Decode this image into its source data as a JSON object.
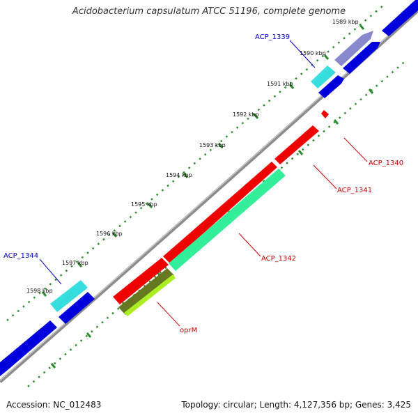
{
  "title": "Acidobacterium capsulatum ATCC 51196, complete genome",
  "accession_text": "Accession: NC_012483",
  "summary_text": "Topology: circular; Length: 4,127,356 bp; Genes: 3,425",
  "colors": {
    "backbone": "#8c8c8c",
    "tick_marks": "#2e8b2e",
    "forward_gene": "#0000dd",
    "reverse_gene": "#ee0000",
    "highlight_cyan": "#33dddd",
    "highlight_teal": "#33ee99",
    "highlight_lime": "#aaee22",
    "highlight_lavender": "#8888cc",
    "forward_label": "#0000cc",
    "reverse_label": "#cc0000"
  },
  "tick_labels": [
    "1589 kbp",
    "1590 kbp",
    "1591 kbp",
    "1592 kbp",
    "1593 kbp",
    "1594 kbp",
    "1595 kbp",
    "1596 kbp",
    "1597 kbp",
    "1598 kbp"
  ],
  "gene_labels": {
    "acp_1339": "ACP_1339",
    "acp_1340": "ACP_1340",
    "acp_1341": "ACP_1341",
    "acp_1342": "ACP_1342",
    "acp_1344": "ACP_1344",
    "oprm": "oprM"
  }
}
